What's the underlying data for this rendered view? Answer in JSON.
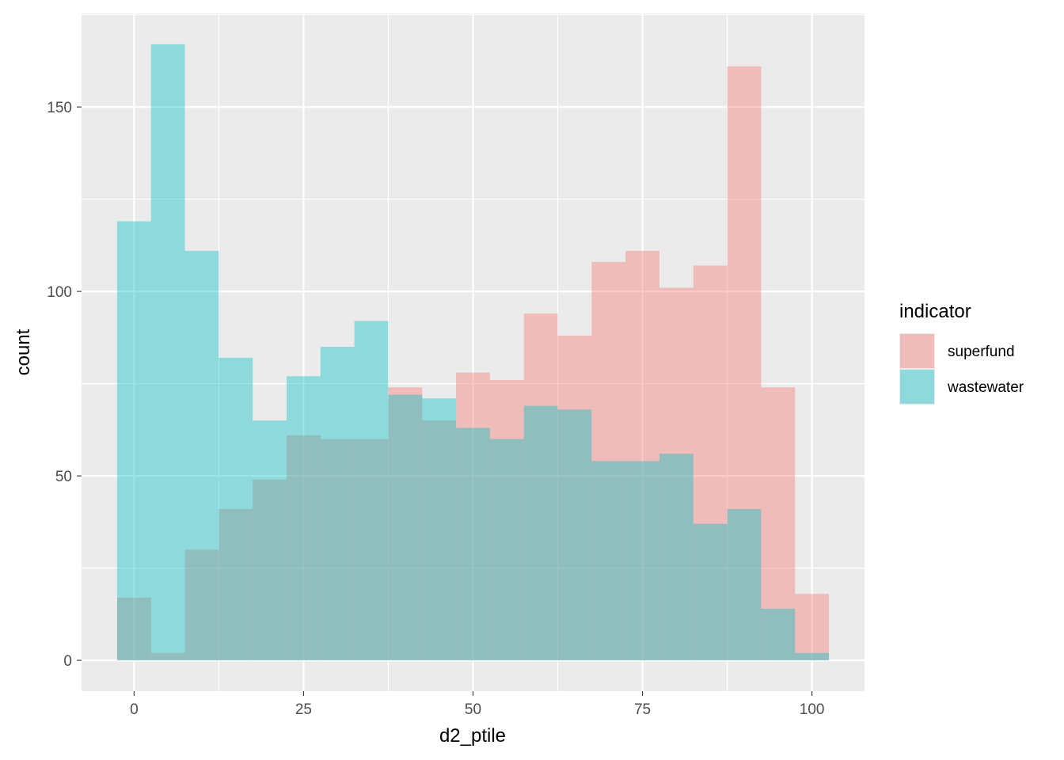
{
  "chart_data": {
    "type": "bar",
    "subtype": "histogram",
    "xlabel": "d2_ptile",
    "ylabel": "count",
    "xlim": [
      -7.75,
      107.75
    ],
    "ylim": [
      -8.35,
      175.35
    ],
    "x_ticks": [
      0,
      25,
      50,
      75,
      100
    ],
    "y_ticks": [
      0,
      50,
      100,
      150
    ],
    "x_tick_labels": [
      "0",
      "25",
      "50",
      "75",
      "100"
    ],
    "y_tick_labels": [
      "0",
      "50",
      "100",
      "150"
    ],
    "bin_width": 5,
    "bin_starts": [
      -2.5,
      2.5,
      7.5,
      12.5,
      17.5,
      22.5,
      27.5,
      32.5,
      37.5,
      42.5,
      47.5,
      52.5,
      57.5,
      62.5,
      67.5,
      72.5,
      77.5,
      82.5,
      87.5,
      92.5,
      97.5
    ],
    "series": [
      {
        "name": "superfund",
        "color": "#F8766D",
        "values": [
          17,
          2,
          30,
          41,
          49,
          61,
          60,
          60,
          74,
          65,
          78,
          76,
          94,
          88,
          108,
          111,
          101,
          107,
          161,
          74,
          18
        ]
      },
      {
        "name": "wastewater",
        "color": "#00BFC4",
        "values": [
          119,
          167,
          111,
          82,
          65,
          77,
          85,
          92,
          72,
          71,
          63,
          60,
          69,
          68,
          54,
          54,
          56,
          37,
          41,
          14,
          2
        ]
      }
    ],
    "fill_alpha": 0.4,
    "grid": true,
    "legend": {
      "title": "indicator",
      "position": "right",
      "entries": [
        "superfund",
        "wastewater"
      ]
    }
  }
}
